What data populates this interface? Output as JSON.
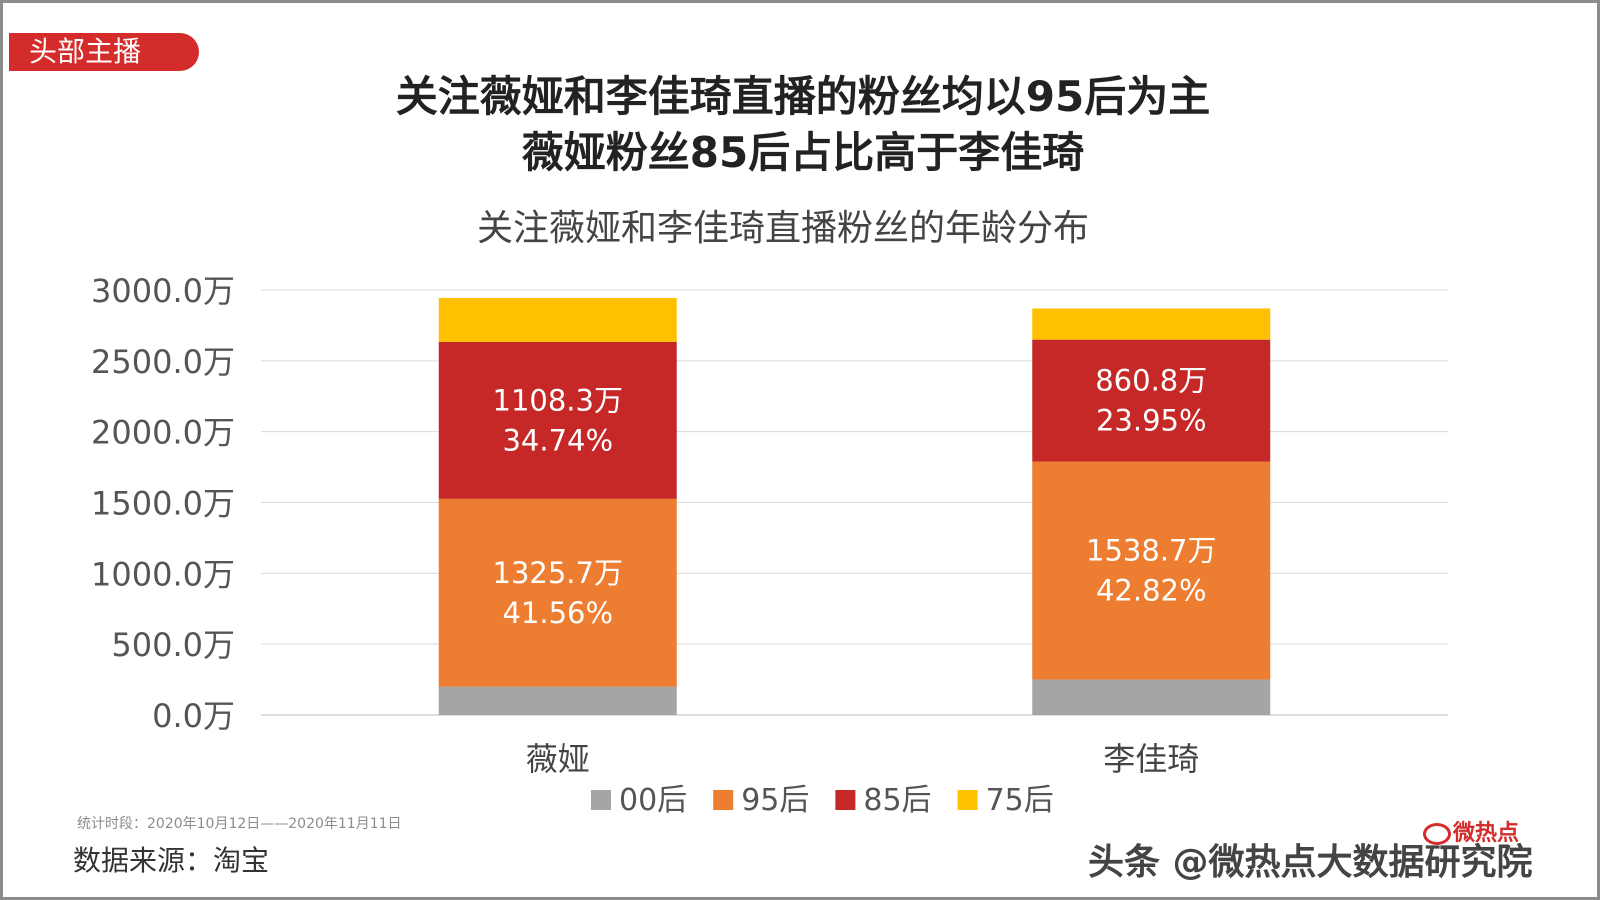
{
  "tag": "头部主播",
  "headline": {
    "line1": "关注薇娅和李佳琦直播的粉丝均以95后为主",
    "line2": "薇娅粉丝85后占比高于李佳琦"
  },
  "chart_title": "关注薇娅和李佳琦直播粉丝的年龄分布",
  "footer": {
    "period": "统计时段：2020年10月12日——2020年11月11日",
    "source": "数据来源：淘宝",
    "watermark": "头条 @微热点大数据研究院",
    "watermark_logo": "微热点"
  },
  "colors": {
    "00后": "#a5a5a5",
    "95后": "#ed7d31",
    "85后": "#c62828",
    "75后": "#ffc000",
    "accent": "#d42b2b"
  },
  "chart_data": {
    "type": "bar",
    "stacked": true,
    "title": "关注薇娅和李佳琦直播粉丝的年龄分布",
    "categories": [
      "薇娅",
      "李佳琦"
    ],
    "series": [
      {
        "name": "00后",
        "values": [
          200,
          250
        ],
        "labels": [
          "",
          ""
        ]
      },
      {
        "name": "95后",
        "values": [
          1325.7,
          1538.7
        ],
        "labels": [
          "1325.7万\n41.56%",
          "1538.7万\n42.82%"
        ]
      },
      {
        "name": "85后",
        "values": [
          1108.3,
          860.8
        ],
        "labels": [
          "1108.3万\n34.74%",
          "860.8万\n23.95%"
        ]
      },
      {
        "name": "75后",
        "values": [
          310,
          220
        ],
        "labels": [
          "",
          ""
        ]
      }
    ],
    "ylim": [
      0,
      3000
    ],
    "yticks": [
      0,
      500,
      1000,
      1500,
      2000,
      2500,
      3000
    ],
    "ytick_labels": [
      "0.0万",
      "500.0万",
      "1000.0万",
      "1500.0万",
      "2000.0万",
      "2500.0万",
      "3000.0万"
    ],
    "xlabel": "",
    "ylabel": "",
    "grid": true,
    "legend": "bottom"
  }
}
